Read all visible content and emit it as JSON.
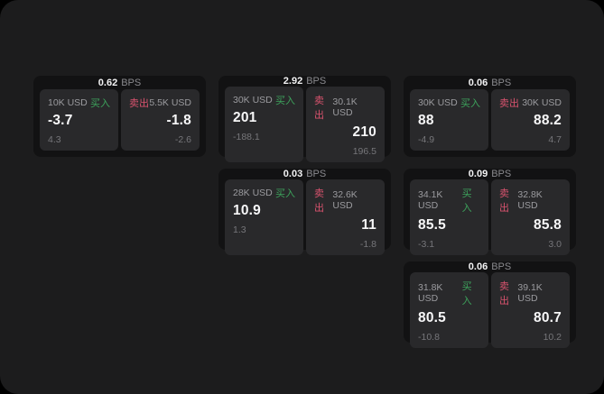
{
  "labels": {
    "bps_suffix": "BPS",
    "buy": "买入",
    "sell": "卖出"
  },
  "colors": {
    "background": "#000000",
    "panel": "#1c1c1d",
    "card": "#121213",
    "pane": "#29292b",
    "buy_accent": "#3da35c",
    "sell_accent": "#d9536e",
    "text_primary": "#f7f7f8",
    "text_muted": "#9b9b9f",
    "text_faint": "#76767a"
  },
  "cards": [
    {
      "bps": "0.62",
      "buy": {
        "amount": "10K USD",
        "price": "-3.7",
        "delta": "4.3"
      },
      "sell": {
        "amount": "5.5K USD",
        "price": "-1.8",
        "delta": "-2.6"
      }
    },
    {
      "bps": "2.92",
      "buy": {
        "amount": "30K USD",
        "price": "201",
        "delta": "-188.1"
      },
      "sell": {
        "amount": "30.1K USD",
        "price": "210",
        "delta": "196.5"
      }
    },
    {
      "bps": "0.06",
      "buy": {
        "amount": "30K USD",
        "price": "88",
        "delta": "-4.9"
      },
      "sell": {
        "amount": "30K USD",
        "price": "88.2",
        "delta": "4.7"
      }
    },
    {
      "bps": "0.03",
      "buy": {
        "amount": "28K USD",
        "price": "10.9",
        "delta": "1.3"
      },
      "sell": {
        "amount": "32.6K USD",
        "price": "11",
        "delta": "-1.8"
      }
    },
    {
      "bps": "0.09",
      "buy": {
        "amount": "34.1K USD",
        "price": "85.5",
        "delta": "-3.1"
      },
      "sell": {
        "amount": "32.8K USD",
        "price": "85.8",
        "delta": "3.0"
      }
    },
    {
      "bps": "0.06",
      "buy": {
        "amount": "31.8K USD",
        "price": "80.5",
        "delta": "-10.8"
      },
      "sell": {
        "amount": "39.1K USD",
        "price": "80.7",
        "delta": "10.2"
      }
    }
  ]
}
